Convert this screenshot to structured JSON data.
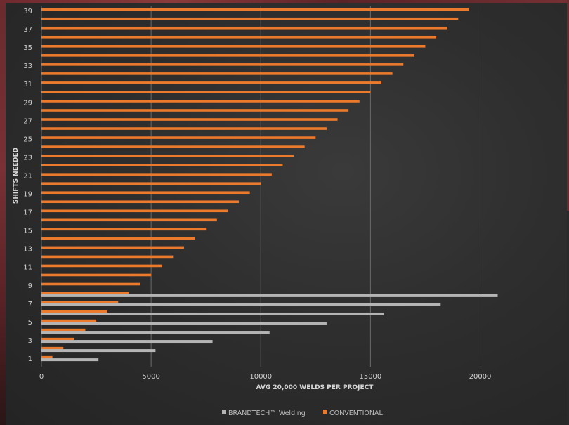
{
  "chart_data": {
    "type": "bar",
    "orientation": "horizontal",
    "xlabel": "AVG 20,000 WELDS PER PROJECT",
    "ylabel": "SHIFTS NEEDED",
    "xlim": [
      0,
      22000
    ],
    "xticks": [
      "0",
      "5000",
      "10000",
      "15000",
      "20000"
    ],
    "xtick_values": [
      0,
      5000,
      10000,
      15000,
      20000
    ],
    "categories": [
      1,
      2,
      3,
      4,
      5,
      6,
      7,
      8,
      9,
      10,
      11,
      12,
      13,
      14,
      15,
      16,
      17,
      18,
      19,
      20,
      21,
      22,
      23,
      24,
      25,
      26,
      27,
      28,
      29,
      30,
      31,
      32,
      33,
      34,
      35,
      36,
      37,
      38,
      39
    ],
    "ytick_labels": [
      "1",
      "3",
      "5",
      "7",
      "9",
      "11",
      "13",
      "15",
      "17",
      "19",
      "21",
      "23",
      "25",
      "27",
      "29",
      "31",
      "33",
      "35",
      "37",
      "39"
    ],
    "grid": "vertical",
    "legend_position": "bottom",
    "series": [
      {
        "name": "BRANDTECH™ Welding",
        "color": "#b4b4b4",
        "values": [
          2600,
          5200,
          7800,
          10400,
          13000,
          15600,
          18200,
          20800,
          null,
          null,
          null,
          null,
          null,
          null,
          null,
          null,
          null,
          null,
          null,
          null,
          null,
          null,
          null,
          null,
          null,
          null,
          null,
          null,
          null,
          null,
          null,
          null,
          null,
          null,
          null,
          null,
          null,
          null,
          null
        ]
      },
      {
        "name": "CONVENTIONAL",
        "color": "#ec7a2c",
        "values": [
          500,
          1000,
          1500,
          2000,
          2500,
          3000,
          3500,
          4000,
          4500,
          5000,
          5500,
          6000,
          6500,
          7000,
          7500,
          8000,
          8500,
          9000,
          9500,
          10000,
          10500,
          11000,
          11500,
          12000,
          12500,
          13000,
          13500,
          14000,
          14500,
          15000,
          15500,
          16000,
          16500,
          17000,
          17500,
          18000,
          18500,
          19000,
          19500
        ]
      }
    ]
  }
}
